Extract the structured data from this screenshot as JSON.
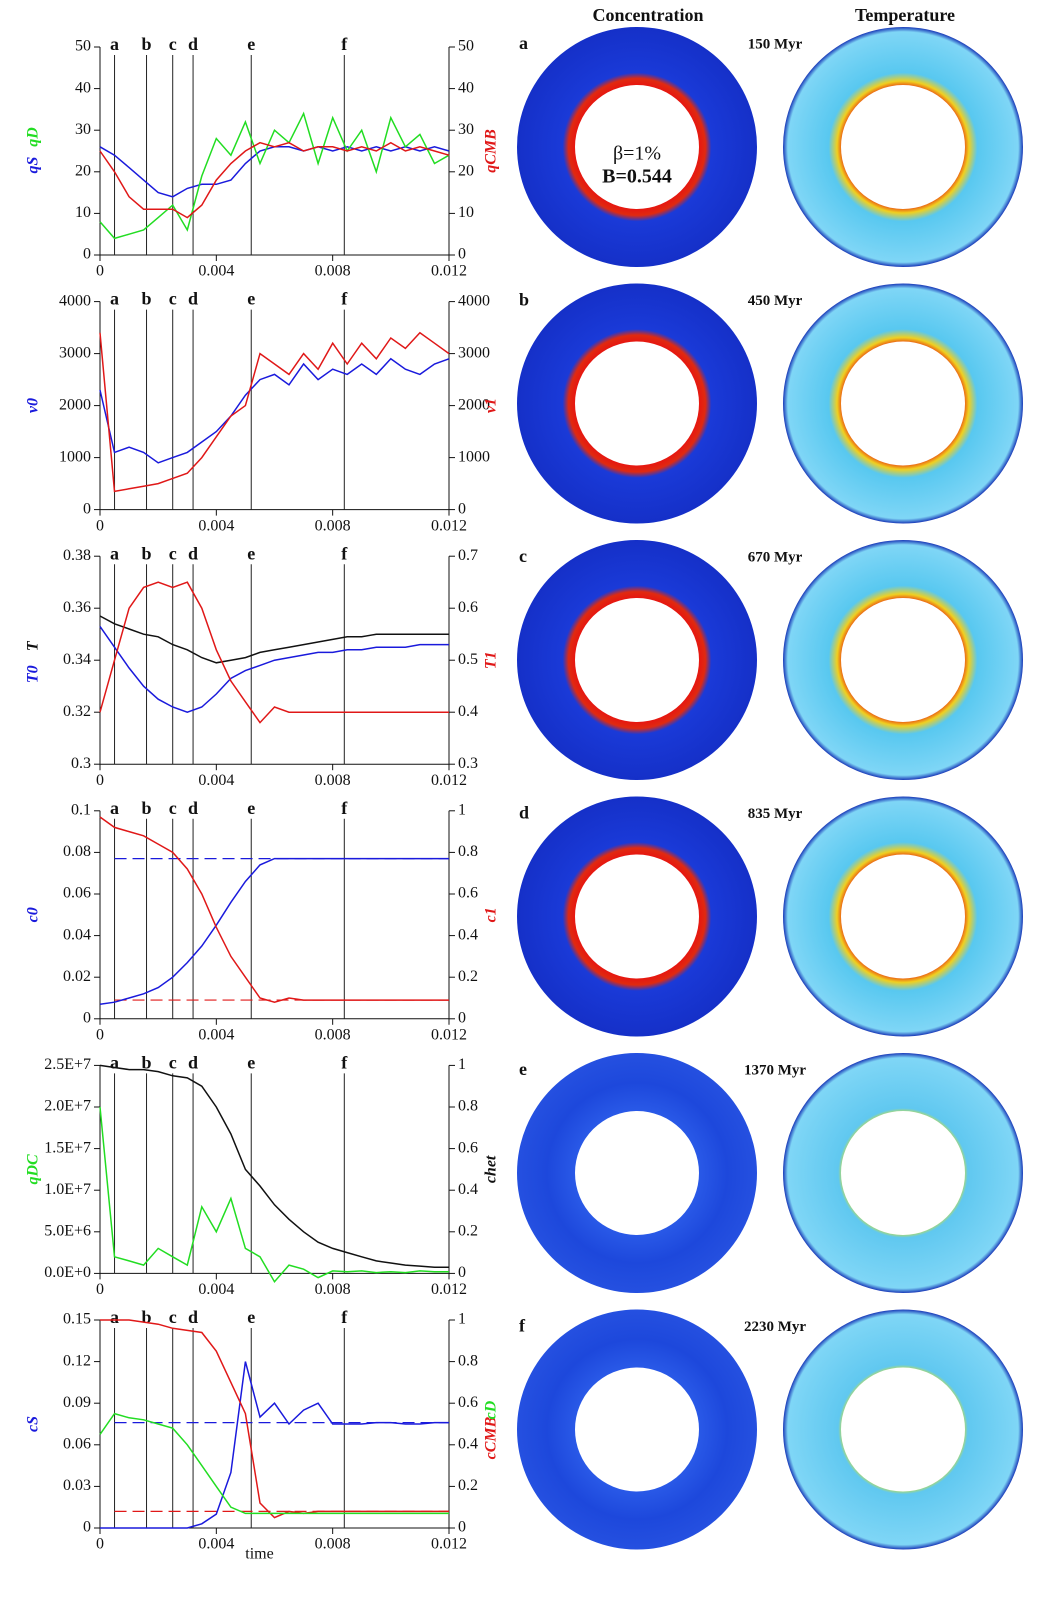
{
  "chart_data": [
    {
      "type": "line",
      "ylim": [
        0,
        50
      ],
      "yticks": [
        0,
        10,
        20,
        30,
        40,
        50
      ],
      "y2lim": [
        0,
        50
      ],
      "y2ticks": [
        0,
        10,
        20,
        30,
        40,
        50
      ],
      "xlim": [
        0,
        0.012
      ],
      "xticks": [
        0,
        0.004,
        0.008,
        0.012
      ],
      "x": [
        0,
        0.0005,
        0.001,
        0.0015,
        0.002,
        0.0025,
        0.003,
        0.0035,
        0.004,
        0.0045,
        0.005,
        0.0055,
        0.006,
        0.0065,
        0.007,
        0.0075,
        0.008,
        0.0085,
        0.009,
        0.0095,
        0.01,
        0.0105,
        0.011,
        0.0115,
        0.012
      ],
      "markers": [
        {
          "label": "a",
          "x": 0.0005
        },
        {
          "label": "b",
          "x": 0.0016
        },
        {
          "label": "c",
          "x": 0.0025
        },
        {
          "label": "d",
          "x": 0.0032
        },
        {
          "label": "e",
          "x": 0.0052
        },
        {
          "label": "f",
          "x": 0.0084
        }
      ],
      "series": [
        {
          "name": "qS",
          "color": "#1a1adc",
          "values": [
            26,
            24,
            21,
            18,
            15,
            14,
            16,
            17,
            17,
            18,
            22,
            25,
            26,
            26,
            25,
            26,
            25,
            26,
            25,
            26,
            25,
            26,
            25,
            26,
            25
          ]
        },
        {
          "name": "qD",
          "color": "#22dd22",
          "values": [
            8,
            4,
            5,
            6,
            9,
            12,
            6,
            19,
            28,
            24,
            32,
            22,
            30,
            27,
            34,
            22,
            33,
            25,
            30,
            20,
            33,
            26,
            29,
            22,
            24
          ]
        },
        {
          "name": "qCMB",
          "color": "#e01818",
          "axis": "y2",
          "values": [
            25,
            20,
            14,
            11,
            11,
            11,
            9,
            12,
            18,
            22,
            25,
            27,
            26,
            27,
            25,
            26,
            26,
            25,
            26,
            25,
            27,
            25,
            26,
            25,
            24
          ]
        }
      ]
    },
    {
      "type": "line",
      "ylim": [
        0,
        4000
      ],
      "yticks": [
        0,
        1000,
        2000,
        3000,
        4000
      ],
      "y2lim": [
        0,
        4000
      ],
      "y2ticks": [
        0,
        1000,
        2000,
        3000,
        4000
      ],
      "xlim": [
        0,
        0.012
      ],
      "xticks": [
        0,
        0.004,
        0.008,
        0.012
      ],
      "x": [
        0,
        0.0005,
        0.001,
        0.0015,
        0.002,
        0.0025,
        0.003,
        0.0035,
        0.004,
        0.0045,
        0.005,
        0.0055,
        0.006,
        0.0065,
        0.007,
        0.0075,
        0.008,
        0.0085,
        0.009,
        0.0095,
        0.01,
        0.0105,
        0.011,
        0.0115,
        0.012
      ],
      "markers": [
        {
          "label": "a",
          "x": 0.0005
        },
        {
          "label": "b",
          "x": 0.0016
        },
        {
          "label": "c",
          "x": 0.0025
        },
        {
          "label": "d",
          "x": 0.0032
        },
        {
          "label": "e",
          "x": 0.0052
        },
        {
          "label": "f",
          "x": 0.0084
        }
      ],
      "series": [
        {
          "name": "v0",
          "color": "#1a1adc",
          "values": [
            2300,
            1100,
            1200,
            1100,
            900,
            1000,
            1100,
            1300,
            1500,
            1800,
            2200,
            2500,
            2600,
            2400,
            2800,
            2500,
            2700,
            2600,
            2800,
            2600,
            2900,
            2700,
            2600,
            2800,
            2900
          ]
        },
        {
          "name": "v1",
          "color": "#e01818",
          "axis": "y2",
          "values": [
            3400,
            350,
            400,
            450,
            500,
            600,
            700,
            1000,
            1400,
            1800,
            2000,
            3000,
            2800,
            2600,
            3000,
            2700,
            3200,
            2800,
            3200,
            2900,
            3300,
            3100,
            3400,
            3200,
            3000
          ]
        }
      ]
    },
    {
      "type": "line",
      "ylim": [
        0.3,
        0.38
      ],
      "yticks": [
        0.3,
        0.32,
        0.34,
        0.36,
        0.38
      ],
      "y2lim": [
        0.3,
        0.7
      ],
      "y2ticks": [
        0.3,
        0.4,
        0.5,
        0.6,
        0.7
      ],
      "xlim": [
        0,
        0.012
      ],
      "xticks": [
        0,
        0.004,
        0.008,
        0.012
      ],
      "x": [
        0,
        0.0005,
        0.001,
        0.0015,
        0.002,
        0.0025,
        0.003,
        0.0035,
        0.004,
        0.0045,
        0.005,
        0.0055,
        0.006,
        0.0065,
        0.007,
        0.0075,
        0.008,
        0.0085,
        0.009,
        0.0095,
        0.01,
        0.0105,
        0.011,
        0.0115,
        0.012
      ],
      "markers": [
        {
          "label": "a",
          "x": 0.0005
        },
        {
          "label": "b",
          "x": 0.0016
        },
        {
          "label": "c",
          "x": 0.0025
        },
        {
          "label": "d",
          "x": 0.0032
        },
        {
          "label": "e",
          "x": 0.0052
        },
        {
          "label": "f",
          "x": 0.0084
        }
      ],
      "series": [
        {
          "name": "T0",
          "color": "#1a1adc",
          "values": [
            0.353,
            0.345,
            0.337,
            0.33,
            0.325,
            0.322,
            0.32,
            0.322,
            0.327,
            0.333,
            0.336,
            0.338,
            0.34,
            0.341,
            0.342,
            0.343,
            0.343,
            0.344,
            0.344,
            0.345,
            0.345,
            0.345,
            0.346,
            0.346,
            0.346
          ]
        },
        {
          "name": "T",
          "color": "#111111",
          "values": [
            0.357,
            0.354,
            0.352,
            0.35,
            0.349,
            0.346,
            0.344,
            0.341,
            0.339,
            0.34,
            0.341,
            0.343,
            0.344,
            0.345,
            0.346,
            0.347,
            0.348,
            0.349,
            0.349,
            0.35,
            0.35,
            0.35,
            0.35,
            0.35,
            0.35
          ]
        },
        {
          "name": "T1",
          "color": "#e01818",
          "axis": "y2",
          "values": [
            0.4,
            0.5,
            0.6,
            0.64,
            0.65,
            0.64,
            0.65,
            0.6,
            0.52,
            0.46,
            0.42,
            0.38,
            0.41,
            0.4,
            0.4,
            0.4,
            0.4,
            0.4,
            0.4,
            0.4,
            0.4,
            0.4,
            0.4,
            0.4,
            0.4
          ]
        }
      ]
    },
    {
      "type": "line",
      "ylim": [
        0,
        0.1
      ],
      "yticks": [
        0,
        0.02,
        0.04,
        0.06,
        0.08,
        0.1
      ],
      "y2lim": [
        0,
        1
      ],
      "y2ticks": [
        0,
        0.2,
        0.4,
        0.6,
        0.8,
        1
      ],
      "xlim": [
        0,
        0.012
      ],
      "xticks": [
        0,
        0.004,
        0.008,
        0.012
      ],
      "x": [
        0,
        0.0005,
        0.001,
        0.0015,
        0.002,
        0.0025,
        0.003,
        0.0035,
        0.004,
        0.0045,
        0.005,
        0.0055,
        0.006,
        0.0065,
        0.007,
        0.0075,
        0.008,
        0.0085,
        0.009,
        0.0095,
        0.01,
        0.0105,
        0.011,
        0.0115,
        0.012
      ],
      "markers": [
        {
          "label": "a",
          "x": 0.0005
        },
        {
          "label": "b",
          "x": 0.0016
        },
        {
          "label": "c",
          "x": 0.0025
        },
        {
          "label": "d",
          "x": 0.0032
        },
        {
          "label": "e",
          "x": 0.0052
        },
        {
          "label": "f",
          "x": 0.0084
        }
      ],
      "reference_lines": [
        {
          "value": 0.077,
          "color": "#1a1adc"
        },
        {
          "value": 0.09,
          "color": "#e01818",
          "axis": "y2"
        }
      ],
      "series": [
        {
          "name": "c0",
          "color": "#1a1adc",
          "values": [
            0.007,
            0.008,
            0.01,
            0.012,
            0.015,
            0.02,
            0.027,
            0.035,
            0.045,
            0.056,
            0.066,
            0.074,
            0.077,
            0.077,
            0.077,
            0.077,
            0.077,
            0.077,
            0.077,
            0.077,
            0.077,
            0.077,
            0.077,
            0.077,
            0.077
          ]
        },
        {
          "name": "c1",
          "color": "#e01818",
          "axis": "y2",
          "values": [
            0.97,
            0.92,
            0.9,
            0.88,
            0.84,
            0.8,
            0.72,
            0.6,
            0.44,
            0.3,
            0.2,
            0.1,
            0.08,
            0.1,
            0.09,
            0.09,
            0.09,
            0.09,
            0.09,
            0.09,
            0.09,
            0.09,
            0.09,
            0.09,
            0.09
          ]
        }
      ]
    },
    {
      "type": "line",
      "ylim": [
        0,
        25000000
      ],
      "yticks": [
        {
          "value": 0,
          "label": "0.0E+0"
        },
        {
          "value": 5000000,
          "label": "5.0E+6"
        },
        {
          "value": 10000000,
          "label": "1.0E+7"
        },
        {
          "value": 15000000,
          "label": "1.5E+7"
        },
        {
          "value": 20000000,
          "label": "2.0E+7"
        },
        {
          "value": 25000000,
          "label": "2.5E+7"
        }
      ],
      "y2lim": [
        0,
        1
      ],
      "y2ticks": [
        0,
        0.2,
        0.4,
        0.6,
        0.8,
        1
      ],
      "xlim": [
        0,
        0.012
      ],
      "xticks": [
        0,
        0.004,
        0.008,
        0.012
      ],
      "x": [
        0,
        0.0005,
        0.001,
        0.0015,
        0.002,
        0.0025,
        0.003,
        0.0035,
        0.004,
        0.0045,
        0.005,
        0.0055,
        0.006,
        0.0065,
        0.007,
        0.0075,
        0.008,
        0.0085,
        0.009,
        0.0095,
        0.01,
        0.0105,
        0.011,
        0.0115,
        0.012
      ],
      "markers": [
        {
          "label": "a",
          "x": 0.0005
        },
        {
          "label": "b",
          "x": 0.0016
        },
        {
          "label": "c",
          "x": 0.0025
        },
        {
          "label": "d",
          "x": 0.0032
        },
        {
          "label": "e",
          "x": 0.0052
        },
        {
          "label": "f",
          "x": 0.0084
        }
      ],
      "series": [
        {
          "name": "qDC",
          "color": "#22dd22",
          "values": [
            20000000,
            2000000,
            1500000,
            1000000,
            3000000,
            2000000,
            1000000,
            8000000,
            5000000,
            9000000,
            3000000,
            2000000,
            -1000000,
            1000000,
            500000,
            -500000,
            300000,
            200000,
            300000,
            100000,
            200000,
            100000,
            300000,
            200000,
            200000
          ]
        },
        {
          "name": "chet",
          "color": "#111111",
          "axis": "y2",
          "values": [
            1,
            0.99,
            0.98,
            0.98,
            0.97,
            0.95,
            0.94,
            0.9,
            0.8,
            0.67,
            0.5,
            0.42,
            0.33,
            0.26,
            0.2,
            0.15,
            0.12,
            0.1,
            0.08,
            0.06,
            0.05,
            0.04,
            0.035,
            0.03,
            0.03
          ]
        }
      ]
    },
    {
      "type": "line",
      "xlabel": "time",
      "ylim": [
        0,
        0.15
      ],
      "yticks": [
        0,
        0.03,
        0.06,
        0.09,
        0.12,
        0.15
      ],
      "y2lim": [
        0,
        1
      ],
      "y2ticks": [
        0,
        0.2,
        0.4,
        0.6,
        0.8,
        1
      ],
      "xlim": [
        0,
        0.012
      ],
      "xticks": [
        0,
        0.004,
        0.008,
        0.012
      ],
      "x": [
        0,
        0.0005,
        0.001,
        0.0015,
        0.002,
        0.0025,
        0.003,
        0.0035,
        0.004,
        0.0045,
        0.005,
        0.0055,
        0.006,
        0.0065,
        0.007,
        0.0075,
        0.008,
        0.0085,
        0.009,
        0.0095,
        0.01,
        0.0105,
        0.011,
        0.0115,
        0.012
      ],
      "markers": [
        {
          "label": "a",
          "x": 0.0005
        },
        {
          "label": "b",
          "x": 0.0016
        },
        {
          "label": "c",
          "x": 0.0025
        },
        {
          "label": "d",
          "x": 0.0032
        },
        {
          "label": "e",
          "x": 0.0052
        },
        {
          "label": "f",
          "x": 0.0084
        }
      ],
      "reference_lines": [
        {
          "value": 0.076,
          "color": "#1a1adc"
        },
        {
          "value": 0.08,
          "color": "#e01818",
          "axis": "y2"
        }
      ],
      "series": [
        {
          "name": "cS",
          "color": "#1a1adc",
          "values": [
            0,
            0,
            0,
            0,
            0,
            0,
            0,
            0.003,
            0.01,
            0.04,
            0.12,
            0.08,
            0.09,
            0.075,
            0.085,
            0.09,
            0.075,
            0.075,
            0.075,
            0.076,
            0.076,
            0.075,
            0.075,
            0.076,
            0.076
          ]
        },
        {
          "name": "cCMB",
          "color": "#e01818",
          "axis": "y2",
          "values": [
            1,
            1,
            1,
            0.99,
            0.98,
            0.96,
            0.95,
            0.94,
            0.85,
            0.7,
            0.55,
            0.12,
            0.05,
            0.08,
            0.07,
            0.08,
            0.08,
            0.08,
            0.08,
            0.08,
            0.08,
            0.08,
            0.08,
            0.08,
            0.08
          ]
        },
        {
          "name": "cD",
          "color": "#22dd22",
          "axis": "y2",
          "values": [
            0.45,
            0.55,
            0.53,
            0.52,
            0.5,
            0.48,
            0.4,
            0.3,
            0.2,
            0.1,
            0.07,
            0.07,
            0.07,
            0.07,
            0.07,
            0.07,
            0.07,
            0.07,
            0.07,
            0.07,
            0.07,
            0.07,
            0.07,
            0.07,
            0.07
          ]
        }
      ]
    }
  ],
  "panels": {
    "column_titles": [
      "Concentration",
      "Temperature"
    ],
    "rows": [
      {
        "label": "a",
        "time": "150 Myr"
      },
      {
        "label": "b",
        "time": "450 Myr"
      },
      {
        "label": "c",
        "time": "670 Myr"
      },
      {
        "label": "d",
        "time": "835 Myr"
      },
      {
        "label": "e",
        "time": "1370 Myr"
      },
      {
        "label": "f",
        "time": "2230 Myr"
      }
    ],
    "annotation": [
      "β=1%",
      "B=0.544"
    ]
  }
}
